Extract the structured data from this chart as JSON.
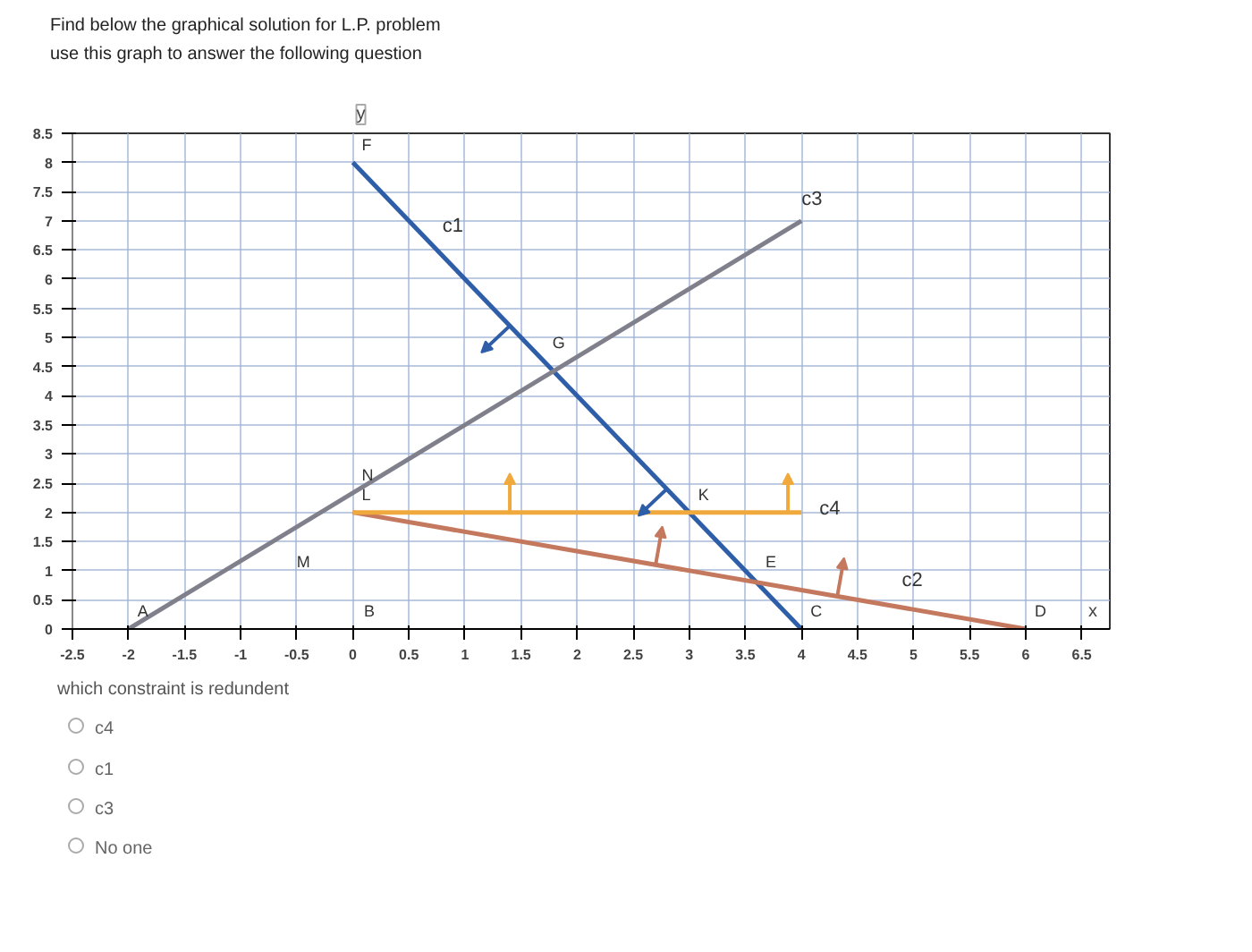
{
  "chart_data": {
    "type": "line",
    "title": "Find below the graphical solution for L.P. problem",
    "subtitle": "use this graph to answer the following question",
    "xlabel": "x",
    "ylabel": "y",
    "xlim": [
      -2.5,
      6.75
    ],
    "ylim": [
      0,
      8.5
    ],
    "xticks": [
      -2.5,
      -2,
      -1.5,
      -1,
      -0.5,
      0,
      0.5,
      1,
      1.5,
      2,
      2.5,
      3,
      3.5,
      4,
      4.5,
      5,
      5.5,
      6,
      6.5
    ],
    "yticks": [
      0,
      0.5,
      1,
      1.5,
      2,
      2.5,
      3,
      3.5,
      4,
      4.5,
      5,
      5.5,
      6,
      6.5,
      7,
      7.5,
      8,
      8.5
    ],
    "grid": true,
    "marker": "none",
    "line_style": "solid",
    "series": [
      {
        "name": "c1",
        "color": "#2f5ea8",
        "x": [
          0,
          4
        ],
        "values": [
          8,
          0
        ]
      },
      {
        "name": "c2",
        "color": "#c4785e",
        "x": [
          0,
          6
        ],
        "values": [
          2,
          0
        ]
      },
      {
        "name": "c3",
        "color": "#80808c",
        "x": [
          -2,
          4
        ],
        "values": [
          0,
          7
        ]
      },
      {
        "name": "c4",
        "color": "#f0a93c",
        "x": [
          0,
          4
        ],
        "values": [
          2,
          2
        ]
      }
    ],
    "annotations": [
      {
        "text": "F",
        "x": 0,
        "y": 8
      },
      {
        "text": "G",
        "x": 1.7,
        "y": 4.6
      },
      {
        "text": "N",
        "x": 0,
        "y": 2.33
      },
      "M",
      {
        "text": "L",
        "x": 0,
        "y": 2
      },
      "B",
      {
        "text": "A",
        "x": -2,
        "y": 0
      },
      {
        "text": "K",
        "x": 3,
        "y": 2
      },
      {
        "text": "E",
        "x": 3.6,
        "y": 0.85
      },
      {
        "text": "C",
        "x": 4,
        "y": 0
      },
      {
        "text": "D",
        "x": 6,
        "y": 0
      },
      "which constraint is redundent",
      "c4",
      "c1",
      "c3",
      "No one"
    ]
  }
}
